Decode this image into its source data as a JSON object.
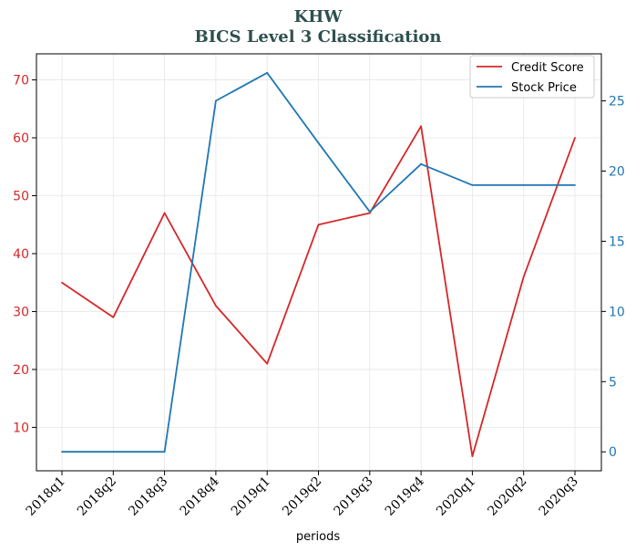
{
  "chart_data": {
    "type": "line",
    "title": "KHW",
    "subtitle": "BICS Level 3 Classification",
    "xlabel": "periods",
    "ylabel": "",
    "y2label": "",
    "categories": [
      "2018q1",
      "2018q2",
      "2018q3",
      "2018q4",
      "2019q1",
      "2019q2",
      "2019q3",
      "2019q4",
      "2020q1",
      "2020q2",
      "2020q3"
    ],
    "series": [
      {
        "name": "Credit Score",
        "axis": "left",
        "color": "#d62728",
        "values": [
          35,
          29,
          47,
          31,
          21,
          45,
          47,
          62,
          5,
          36,
          60
        ]
      },
      {
        "name": "Stock Price",
        "axis": "right",
        "color": "#1f77b4",
        "values": [
          0,
          0,
          0,
          25,
          27,
          22,
          17.1,
          20.5,
          19,
          19,
          19
        ]
      }
    ],
    "ylim": [
      2.5,
      74.5
    ],
    "y2lim": [
      -1.35,
      28.35
    ],
    "yticks": [
      10,
      20,
      30,
      40,
      50,
      60,
      70
    ],
    "y2ticks": [
      0,
      5,
      10,
      15,
      20,
      25
    ],
    "grid": true,
    "legend_position": "top-right"
  }
}
